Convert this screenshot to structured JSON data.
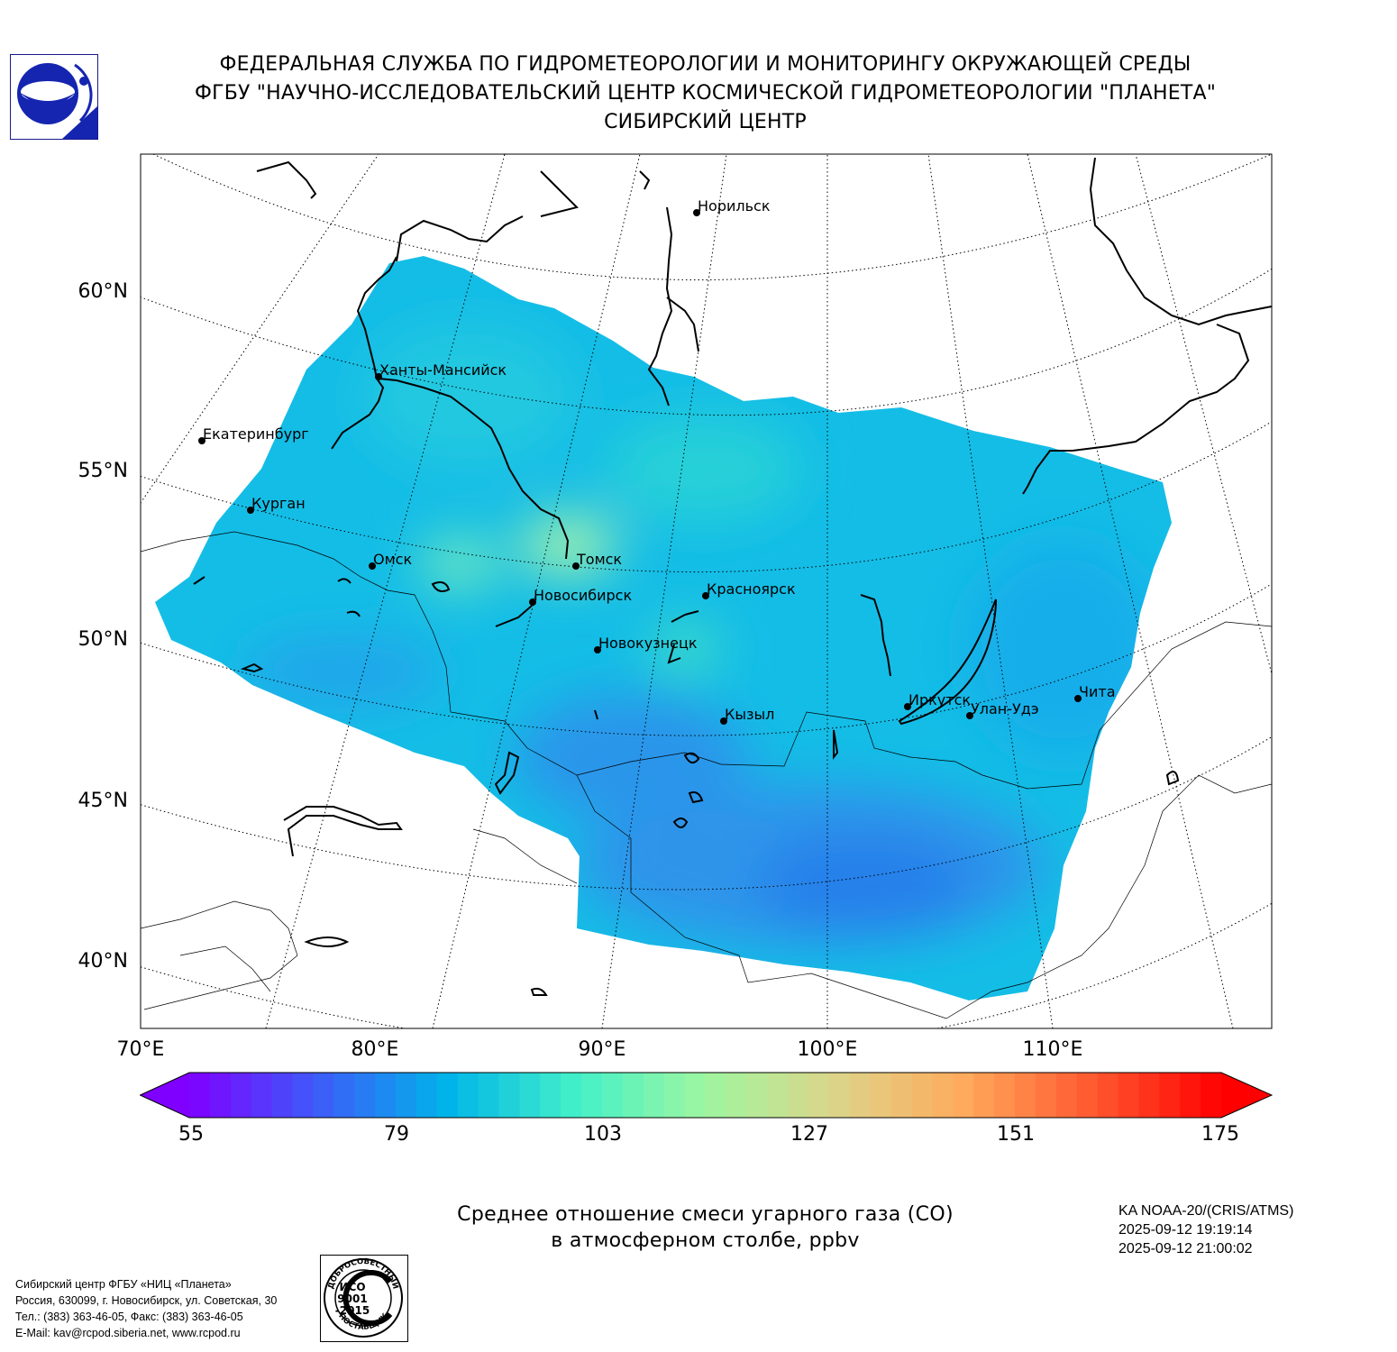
{
  "header": {
    "line1": "ФЕДЕРАЛЬНАЯ СЛУЖБА ПО ГИДРОМЕТЕОРОЛОГИИ И МОНИТОРИНГУ ОКРУЖАЮЩЕЙ СРЕДЫ",
    "line2": "ФГБУ \"НАУЧНО-ИССЛЕДОВАТЕЛЬСКИЙ ЦЕНТР КОСМИЧЕСКОЙ ГИДРОМЕТЕОРОЛОГИИ \"ПЛАНЕТА\"",
    "line3": "СИБИРСКИЙ ЦЕНТР"
  },
  "map": {
    "lat_labels": [
      "60°N",
      "55°N",
      "50°N",
      "45°N",
      "40°N"
    ],
    "lon_labels": [
      "70°E",
      "80°E",
      "90°E",
      "100°E",
      "110°E"
    ],
    "cities": [
      {
        "name": "Норильск"
      },
      {
        "name": "Ханты-Мансийск"
      },
      {
        "name": "Екатеринбург"
      },
      {
        "name": "Курган"
      },
      {
        "name": "Омск"
      },
      {
        "name": "Томск"
      },
      {
        "name": "Новосибирск"
      },
      {
        "name": "Красноярск"
      },
      {
        "name": "Новокузнецк"
      },
      {
        "name": "Кызыл"
      },
      {
        "name": "Иркутск"
      },
      {
        "name": "Улан-Удэ"
      },
      {
        "name": "Чита"
      }
    ],
    "field_colors": {
      "low": "#2a8ce8",
      "mid": "#12b8e6",
      "high": "#9ff0b0"
    }
  },
  "colorbar": {
    "ticks": [
      "55",
      "79",
      "103",
      "127",
      "151",
      "175"
    ],
    "min": 55,
    "max": 175,
    "colors": [
      "#7f00ff",
      "#3d5cf9",
      "#00b4e9",
      "#43f0c8",
      "#9ef6a0",
      "#dcd58a",
      "#ffaa5c",
      "#ff5930",
      "#ff0000"
    ]
  },
  "caption": {
    "line1": "Среднее отношение смеси угарного газа (CO)",
    "line2": "в атмосферном столбе, ppbv"
  },
  "satellite": {
    "instrument": "KA NOAA-20/(CRIS/ATMS)",
    "time_start": "2025-09-12 19:19:14",
    "time_end": "2025-09-12 21:00:02"
  },
  "contacts": {
    "org": "Сибирский центр ФГБУ «НИЦ «Планета»",
    "address": "Россия, 630099, г. Новосибирск, ул. Советская, 30",
    "phone": "Тел.: (383) 363-46-05, Факс: (383) 363-46-05",
    "email": "E-Mail: kav@rcpod.siberia.net, www.rcpod.ru"
  },
  "iso_stamp": {
    "top": "ДОБРОСОВЕСТНЫЙ",
    "l1": "ИСО",
    "l2": "9001",
    "l3": "-2015",
    "bottom": "ПОСТАВЩИК"
  }
}
